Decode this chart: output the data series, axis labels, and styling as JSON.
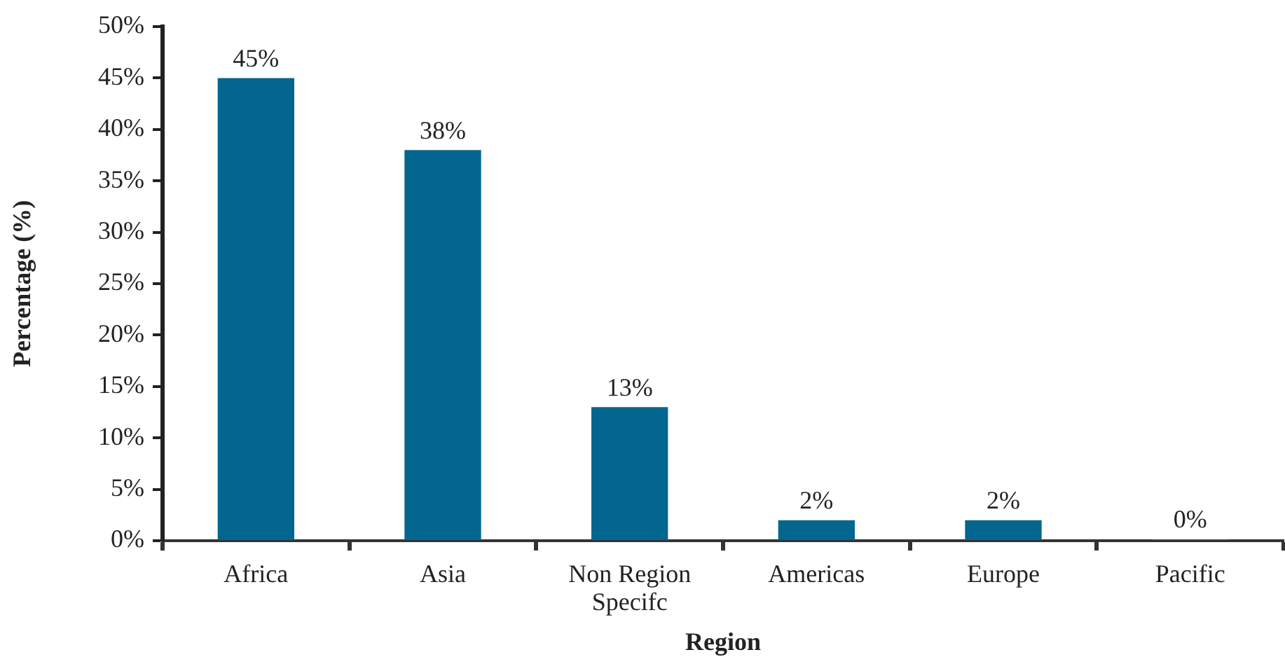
{
  "chart_data": {
    "type": "bar",
    "xlabel": "Region",
    "ylabel": "Percentage (%)",
    "categories": [
      "Africa",
      "Asia",
      "Non Region Specifc",
      "Americas",
      "Europe",
      "Pacific"
    ],
    "values": [
      45,
      38,
      13,
      2,
      2,
      0
    ],
    "value_labels": [
      "45%",
      "38%",
      "13%",
      "2%",
      "2%",
      "0%"
    ],
    "color": "#03668f",
    "ylim": [
      0,
      50
    ],
    "yticks": [
      {
        "value": 0,
        "label": "0%"
      },
      {
        "value": 5,
        "label": "5%"
      },
      {
        "value": 10,
        "label": "10%"
      },
      {
        "value": 15,
        "label": "15%"
      },
      {
        "value": 20,
        "label": "20%"
      },
      {
        "value": 25,
        "label": "25%"
      },
      {
        "value": 30,
        "label": "30%"
      },
      {
        "value": 35,
        "label": "35%"
      },
      {
        "value": 40,
        "label": "40%"
      },
      {
        "value": 45,
        "label": "45%"
      },
      {
        "value": 50,
        "label": "50%"
      }
    ],
    "grid": false,
    "legend": false
  }
}
